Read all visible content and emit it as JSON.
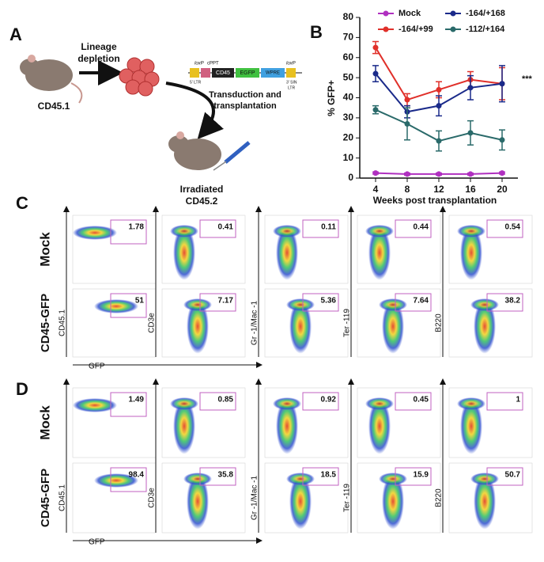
{
  "panel_a": {
    "label": "A",
    "step1": [
      "Lineage",
      "depletion"
    ],
    "donor": "CD45.1",
    "vector": [
      "loxP",
      "cPPT",
      "CD45",
      "EGFP",
      "WPRE",
      "loxP",
      "5' LTR",
      "3' SIN",
      "LTR"
    ],
    "step2": [
      "Transduction and",
      "transplantation"
    ],
    "recipient": [
      "Irradiated",
      "CD45.2"
    ]
  },
  "chart_data": {
    "type": "line",
    "label": "B",
    "xlabel": "Weeks post transplantation",
    "ylabel": "% GFP+",
    "annotation": "***",
    "x": [
      4,
      8,
      12,
      16,
      20
    ],
    "xlim": [
      2,
      22
    ],
    "xticks": [
      4,
      8,
      12,
      16,
      20
    ],
    "ylim": [
      0,
      80
    ],
    "yticks": [
      0,
      10,
      20,
      30,
      40,
      50,
      60,
      70,
      80
    ],
    "series": [
      {
        "name": "Mock",
        "color": "#b030c0",
        "values": [
          2.5,
          2,
          2,
          2,
          2.5
        ],
        "errors": [
          0.5,
          0.5,
          0.5,
          0.5,
          0.5
        ]
      },
      {
        "name": "-164/+99",
        "color": "#e0302a",
        "values": [
          65,
          39,
          44,
          49,
          47
        ],
        "errors": [
          3,
          3,
          4,
          4,
          8
        ]
      },
      {
        "name": "-164/+168",
        "color": "#1a2a8a",
        "values": [
          52,
          33,
          36,
          45,
          47
        ],
        "errors": [
          4,
          3,
          5,
          6,
          9
        ]
      },
      {
        "name": "-112/+164",
        "color": "#2a6a6a",
        "values": [
          34,
          27,
          18.5,
          22.5,
          19
        ],
        "errors": [
          2,
          8,
          5,
          6,
          5
        ]
      }
    ]
  },
  "flow_panels": [
    {
      "label": "C",
      "rows": [
        {
          "name": "Mock",
          "gates": [
            "1.78",
            "0.41",
            "0.11",
            "0.44",
            "0.54"
          ]
        },
        {
          "name": "CD45-GFP",
          "gates": [
            "51",
            "7.17",
            "5.36",
            "7.64",
            "38.2"
          ]
        }
      ],
      "markers": [
        "CD45.1",
        "CD3e",
        "Gr -1/Mac -1",
        "Ter -119",
        "B220"
      ],
      "x_axis": "GFP"
    },
    {
      "label": "D",
      "rows": [
        {
          "name": "Mock",
          "gates": [
            "1.49",
            "0.85",
            "0.92",
            "0.45",
            "1"
          ]
        },
        {
          "name": "CD45-GFP",
          "gates": [
            "98.4",
            "35.8",
            "18.5",
            "15.9",
            "50.7"
          ]
        }
      ],
      "markers": [
        "CD45.1",
        "CD3e",
        "Gr -1/Mac -1",
        "Ter -119",
        "B220"
      ],
      "x_axis": "GFP"
    }
  ]
}
